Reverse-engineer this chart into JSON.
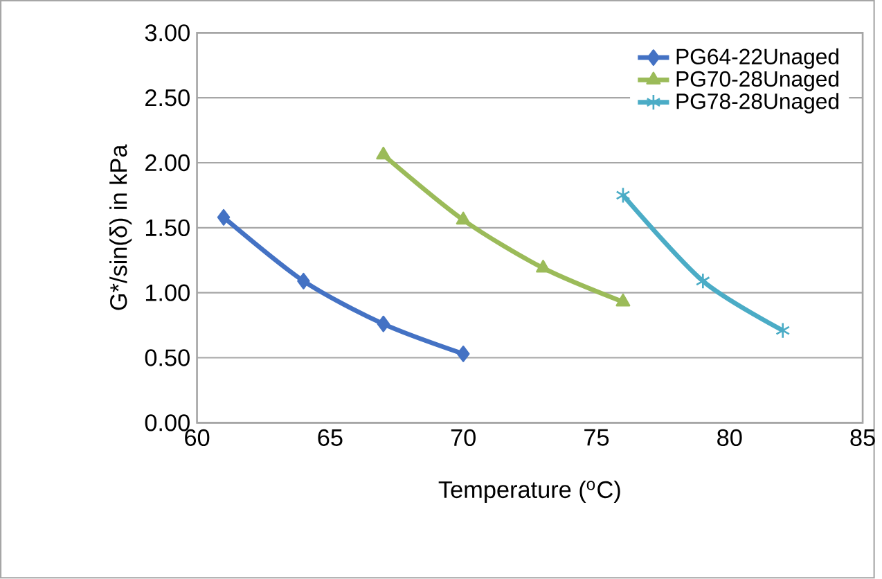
{
  "chart_data": {
    "type": "line",
    "xlabel": "Temperature ($^{o}$C)",
    "ylabel": "G*/sin(δ) in kPa",
    "xlim": [
      60,
      85
    ],
    "xticks": [
      60,
      65,
      70,
      75,
      80,
      85
    ],
    "ylim": [
      0,
      3
    ],
    "yticks": [
      {
        "value": 0,
        "label": "0.00"
      },
      {
        "value": 0.5,
        "label": "0.50"
      },
      {
        "value": 1,
        "label": "1.00"
      },
      {
        "value": 1.5,
        "label": "1.50"
      },
      {
        "value": 2,
        "label": "2.00"
      },
      {
        "value": 2.5,
        "label": "2.50"
      },
      {
        "value": 3,
        "label": "3.00"
      }
    ],
    "grid": "y",
    "legend": "top right",
    "series": [
      {
        "name": "PG64-22Unaged",
        "color": "#4472c4",
        "marker": "diamond",
        "x": [
          61,
          64,
          67,
          70
        ],
        "values": [
          1.58,
          1.09,
          0.76,
          0.53
        ]
      },
      {
        "name": "PG70-28Unaged",
        "color": "#9bbb59",
        "marker": "triangle",
        "x": [
          67,
          70,
          73,
          76
        ],
        "values": [
          2.06,
          1.56,
          1.19,
          0.93
        ]
      },
      {
        "name": "PG78-28Unaged",
        "color": "#4bacc6",
        "marker": "cross",
        "x": [
          76,
          79,
          82
        ],
        "values": [
          1.75,
          1.09,
          0.71
        ]
      }
    ]
  }
}
